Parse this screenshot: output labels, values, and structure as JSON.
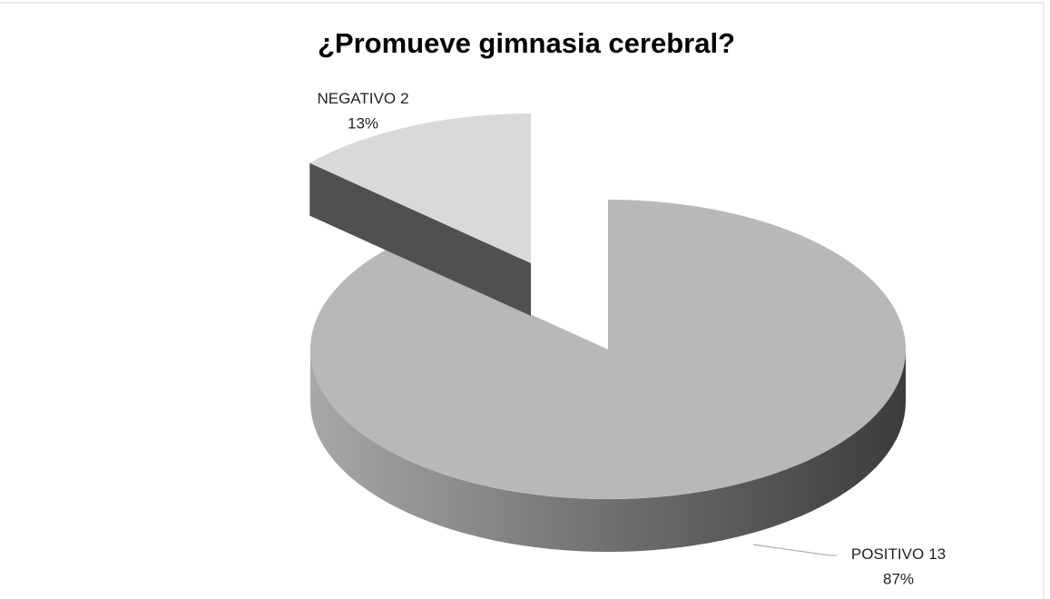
{
  "chart_data": {
    "type": "pie",
    "title": "¿Promueve gimnasia cerebral?",
    "categories": [
      "NEGATIVO",
      "POSITIVO"
    ],
    "values": [
      2,
      13
    ],
    "percentages": [
      13,
      87
    ],
    "percentage_labels": [
      "13%",
      "87%"
    ],
    "colors": [
      "#d9d9d9",
      "#b8b8b8"
    ],
    "exploded": [
      true,
      false
    ]
  }
}
